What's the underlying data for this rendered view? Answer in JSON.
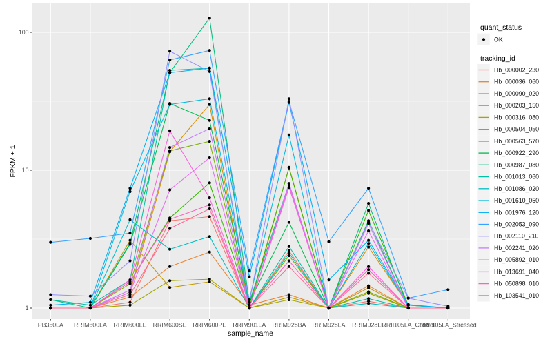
{
  "chart_data": {
    "type": "line",
    "title": "",
    "xlabel": "sample_name",
    "ylabel": "FPKM + 1",
    "y_scale": "log10",
    "ylim": [
      1,
      160
    ],
    "grid": true,
    "legend_position": "right",
    "y_ticks": [
      {
        "value": 1,
        "label": "1"
      },
      {
        "value": 10,
        "label": "10"
      },
      {
        "value": 100,
        "label": "100"
      }
    ],
    "y_minor_ticks": [
      3.1623,
      31.623
    ],
    "categories": [
      "PB350LA",
      "RRIM600LA",
      "RRIM600LE",
      "RRIM600SE",
      "RRIM600PE",
      "RRIM901LA",
      "RRIM928BA",
      "RRIM928LA",
      "RRIM928LE",
      "RRII105LA_Control",
      "RRII105LA_Stressed"
    ],
    "series": [
      {
        "tracking_id": "Hb_000002_230",
        "color": "#F8766D",
        "quant_status": "OK",
        "values": [
          1.0,
          1.0,
          1.1,
          4.3,
          4.6,
          1.0,
          2.6,
          1.0,
          1.12,
          1.0,
          1.0
        ]
      },
      {
        "tracking_id": "Hb_000036_060",
        "color": "#EA8331",
        "quant_status": "OK",
        "values": [
          1.0,
          1.0,
          1.2,
          2.0,
          2.55,
          1.05,
          1.25,
          1.0,
          1.45,
          1.0,
          1.0
        ]
      },
      {
        "tracking_id": "Hb_000090_020",
        "color": "#D89000",
        "quant_status": "OK",
        "values": [
          1.0,
          1.0,
          1.3,
          13.6,
          30.0,
          1.0,
          10.5,
          1.0,
          2.77,
          1.05,
          1.0
        ]
      },
      {
        "tracking_id": "Hb_000203_150",
        "color": "#C09B00",
        "quant_status": "OK",
        "values": [
          1.0,
          1.0,
          3.1,
          1.41,
          1.55,
          1.0,
          1.2,
          1.0,
          1.4,
          1.0,
          1.0
        ]
      },
      {
        "tracking_id": "Hb_000316_080",
        "color": "#A3A500",
        "quant_status": "OK",
        "values": [
          1.0,
          1.0,
          1.05,
          1.58,
          1.62,
          1.0,
          1.15,
          1.0,
          1.28,
          1.0,
          1.0
        ]
      },
      {
        "tracking_id": "Hb_000504_050",
        "color": "#7CAE00",
        "quant_status": "OK",
        "values": [
          1.0,
          1.0,
          1.5,
          13.8,
          16.2,
          1.0,
          2.4,
          1.0,
          1.31,
          1.0,
          1.0
        ]
      },
      {
        "tracking_id": "Hb_000563_570",
        "color": "#39B600",
        "quant_status": "OK",
        "values": [
          1.0,
          1.0,
          1.55,
          4.5,
          8.1,
          1.05,
          10.4,
          1.0,
          5.1,
          1.05,
          1.0
        ]
      },
      {
        "tracking_id": "Hb_000922_290",
        "color": "#00BB4E",
        "quant_status": "OK",
        "values": [
          1.0,
          1.0,
          2.9,
          30.5,
          23.0,
          1.1,
          4.2,
          1.0,
          4.3,
          1.0,
          1.0
        ]
      },
      {
        "tracking_id": "Hb_000987_080",
        "color": "#00BF7D",
        "quant_status": "OK",
        "values": [
          1.15,
          1.0,
          2.95,
          51.0,
          127.0,
          1.1,
          8.0,
          1.0,
          5.75,
          1.0,
          1.0
        ]
      },
      {
        "tracking_id": "Hb_001013_060",
        "color": "#00C1A7",
        "quant_status": "OK",
        "values": [
          1.15,
          1.05,
          1.6,
          53.0,
          55.0,
          1.0,
          2.8,
          1.0,
          1.17,
          1.0,
          1.0
        ]
      },
      {
        "tracking_id": "Hb_001086_020",
        "color": "#00BFC4",
        "quant_status": "OK",
        "values": [
          1.0,
          1.0,
          4.37,
          2.67,
          3.3,
          1.0,
          2.5,
          1.0,
          1.08,
          1.0,
          1.0
        ]
      },
      {
        "tracking_id": "Hb_001610_050",
        "color": "#00BAE0",
        "quant_status": "OK",
        "values": [
          1.0,
          1.0,
          7.0,
          30.0,
          33.0,
          1.15,
          18.0,
          1.0,
          2.94,
          1.05,
          1.0
        ]
      },
      {
        "tracking_id": "Hb_001976_120",
        "color": "#00B0F6",
        "quant_status": "OK",
        "values": [
          1.05,
          1.1,
          7.4,
          51.0,
          55.0,
          1.68,
          31.0,
          1.6,
          3.1,
          1.06,
          1.0
        ]
      },
      {
        "tracking_id": "Hb_002053_090",
        "color": "#35A2FF",
        "quant_status": "OK",
        "values": [
          3.0,
          3.2,
          3.5,
          63.0,
          74.0,
          1.86,
          31.5,
          3.03,
          7.4,
          1.18,
          1.36
        ]
      },
      {
        "tracking_id": "Hb_002110_210",
        "color": "#9590FF",
        "quant_status": "OK",
        "values": [
          1.25,
          1.22,
          2.2,
          73.0,
          52.0,
          1.1,
          33.0,
          1.0,
          4.2,
          1.18,
          1.03
        ]
      },
      {
        "tracking_id": "Hb_002241_020",
        "color": "#C77CFF",
        "quant_status": "OK",
        "values": [
          1.0,
          1.0,
          1.35,
          14.6,
          20.0,
          1.0,
          8.0,
          1.0,
          4.1,
          1.0,
          1.0
        ]
      },
      {
        "tracking_id": "Hb_005892_010",
        "color": "#E76BF3",
        "quant_status": "OK",
        "values": [
          1.0,
          1.0,
          1.3,
          7.2,
          12.3,
          1.0,
          7.8,
          1.0,
          3.63,
          1.0,
          1.0
        ]
      },
      {
        "tracking_id": "Hb_013691_040",
        "color": "#FA62DB",
        "quant_status": "OK",
        "values": [
          1.0,
          1.0,
          1.6,
          19.3,
          6.3,
          1.0,
          7.5,
          1.0,
          2.0,
          1.0,
          1.0
        ]
      },
      {
        "tracking_id": "Hb_050898_010",
        "color": "#FF62BC",
        "quant_status": "OK",
        "values": [
          1.0,
          1.0,
          1.55,
          4.4,
          5.6,
          1.0,
          2.2,
          1.0,
          1.9,
          1.0,
          1.0
        ]
      },
      {
        "tracking_id": "Hb_103541_010",
        "color": "#FF6A98",
        "quant_status": "OK",
        "values": [
          1.0,
          1.0,
          1.25,
          3.77,
          5.25,
          1.0,
          2.0,
          1.0,
          1.79,
          1.0,
          1.0
        ]
      }
    ]
  },
  "legend": {
    "quant_status": {
      "title": "quant_status",
      "items": [
        {
          "label": "OK",
          "marker": "point-icon"
        }
      ]
    },
    "tracking": {
      "title": "tracking_id"
    }
  },
  "style": {
    "panel_bg": "#EBEBEB",
    "grid_color": "#FFFFFF",
    "tick_color": "#333333",
    "tick_label_color": "#4D4D4D",
    "text_color": "#000000",
    "legend_key_bg": "#F2F2F2",
    "point_color": "#000000",
    "background": "#FFFFFF"
  }
}
